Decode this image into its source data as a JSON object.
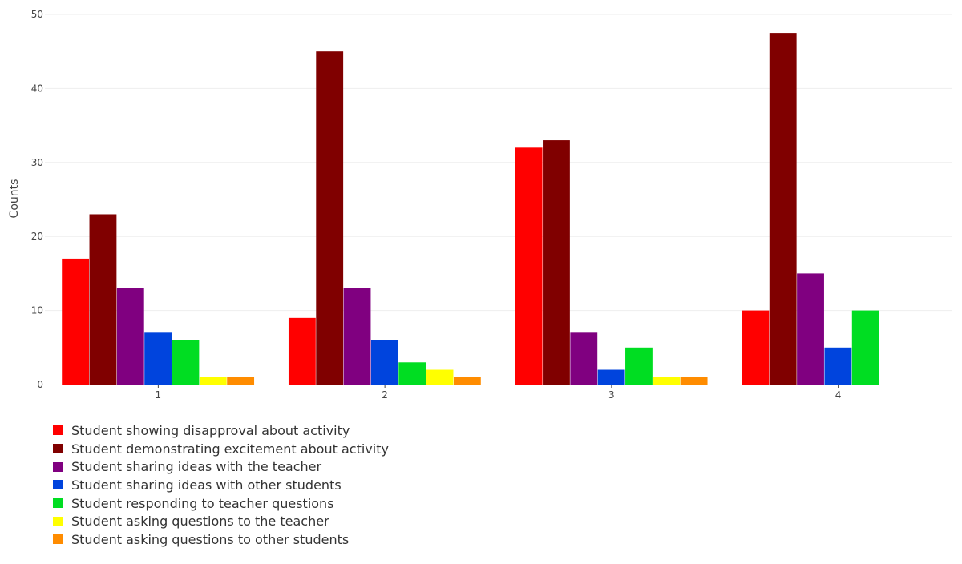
{
  "chart_data": {
    "type": "bar",
    "title": "",
    "xlabel": "",
    "ylabel": "Counts",
    "ylim": [
      0,
      50
    ],
    "yticks": [
      0,
      10,
      20,
      30,
      40,
      50
    ],
    "grid": true,
    "legend_position": "bottom-left",
    "categories": [
      "1",
      "2",
      "3",
      "4"
    ],
    "series": [
      {
        "name": "Student showing disapproval about activity",
        "color": "#ff0000",
        "values": [
          17,
          9,
          32,
          10
        ]
      },
      {
        "name": "Student demonstrating excitement about activity",
        "color": "#800000",
        "values": [
          23,
          45,
          33,
          47.5
        ]
      },
      {
        "name": "Student sharing ideas with the teacher",
        "color": "#800080",
        "values": [
          13,
          13,
          7,
          15
        ]
      },
      {
        "name": "Student sharing ideas with other students",
        "color": "#0044dd",
        "values": [
          7,
          6,
          2,
          5
        ]
      },
      {
        "name": "Student responding to teacher questions",
        "color": "#00dd22",
        "values": [
          6,
          3,
          5,
          10
        ]
      },
      {
        "name": "Student asking questions to the teacher",
        "color": "#ffff00",
        "values": [
          1,
          2,
          1,
          0
        ]
      },
      {
        "name": "Student asking questions to other students",
        "color": "#ff8c00",
        "values": [
          1,
          1,
          1,
          0
        ]
      }
    ]
  }
}
